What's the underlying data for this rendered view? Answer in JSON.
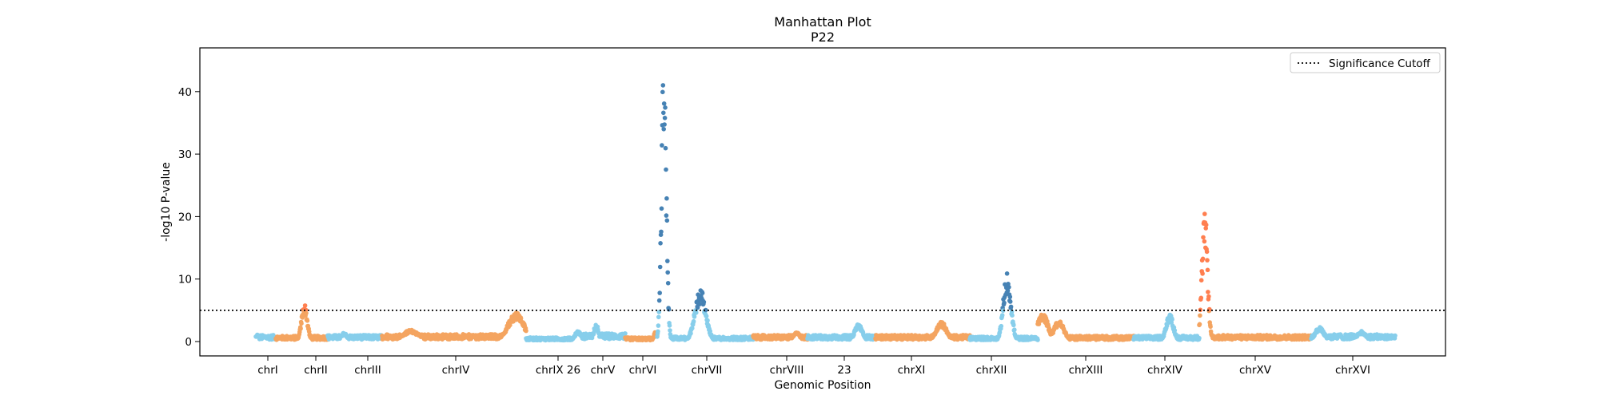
{
  "chart_data": {
    "type": "scatter",
    "title": "Manhattan Plot",
    "subtitle": "P22",
    "xlabel": "Genomic Position",
    "ylabel": "-log10 P-value",
    "ylim": [
      -2.3,
      47.0
    ],
    "yticks": [
      0,
      10,
      20,
      30,
      40
    ],
    "grid": false,
    "legend": {
      "position": "top-right",
      "entries": [
        "Significance Cutoff"
      ]
    },
    "significance_cutoff": 5.0,
    "colors": {
      "sky": "#87ceeb",
      "sandy": "#f4a460",
      "steel_significant": "#4682b4",
      "coral_significant": "#ff7f50",
      "cutoff_line": "#000000"
    },
    "chromosomes": [
      {
        "label": "chrI",
        "color": "sky",
        "base": 0.8,
        "peaks": [
          [
            0.1,
            1.2
          ]
        ]
      },
      {
        "label": "chrII",
        "color": "sandy",
        "base": 0.7,
        "peaks": [
          [
            0.55,
            5.8
          ]
        ]
      },
      {
        "label": "chrIII",
        "color": "sky",
        "base": 0.8,
        "peaks": [
          [
            0.3,
            1.4
          ]
        ]
      },
      {
        "label": "chrIV",
        "color": "sandy",
        "base": 0.9,
        "peaks": [
          [
            0.2,
            1.8
          ],
          [
            0.93,
            4.5
          ]
        ]
      },
      {
        "label": "chrIX 26",
        "color": "sky",
        "base": 0.5,
        "peaks": [
          [
            0.9,
            1.6
          ]
        ]
      },
      {
        "label": "chrV",
        "color": "sky",
        "base": 1.0,
        "peaks": [
          [
            0.3,
            2.8
          ]
        ]
      },
      {
        "label": "chrVI",
        "color": "sandy",
        "base": 0.5,
        "peaks": [
          [
            0.95,
            1.5
          ]
        ]
      },
      {
        "label": "chrVII",
        "color": "sky",
        "base": 0.6,
        "peaks": [
          [
            0.07,
            44.5
          ],
          [
            0.45,
            8.0
          ]
        ]
      },
      {
        "label": "chrVIII",
        "color": "sandy",
        "base": 0.8,
        "peaks": [
          [
            0.8,
            1.5
          ]
        ]
      },
      {
        "label": "23",
        "color": "sky",
        "base": 0.8,
        "peaks": [
          [
            0.75,
            2.8
          ]
        ]
      },
      {
        "label": "chrXI",
        "color": "sandy",
        "base": 0.8,
        "peaks": [
          [
            0.7,
            3.0
          ]
        ]
      },
      {
        "label": "chrXII",
        "color": "sky",
        "base": 0.6,
        "peaks": [
          [
            0.55,
            10.5
          ]
        ]
      },
      {
        "label": "chrXIII",
        "color": "sandy",
        "base": 0.7,
        "peaks": [
          [
            0.05,
            4.5
          ],
          [
            0.22,
            3.2
          ]
        ]
      },
      {
        "label": "chrXIV",
        "color": "sky",
        "base": 0.7,
        "peaks": [
          [
            0.55,
            4.2
          ]
        ]
      },
      {
        "label": "chrXV",
        "color": "sandy",
        "base": 0.8,
        "peaks": [
          [
            0.05,
            20.0
          ]
        ]
      },
      {
        "label": "chrXVI",
        "color": "sky",
        "base": 0.9,
        "peaks": [
          [
            0.1,
            2.2
          ],
          [
            0.6,
            1.6
          ]
        ]
      }
    ]
  }
}
